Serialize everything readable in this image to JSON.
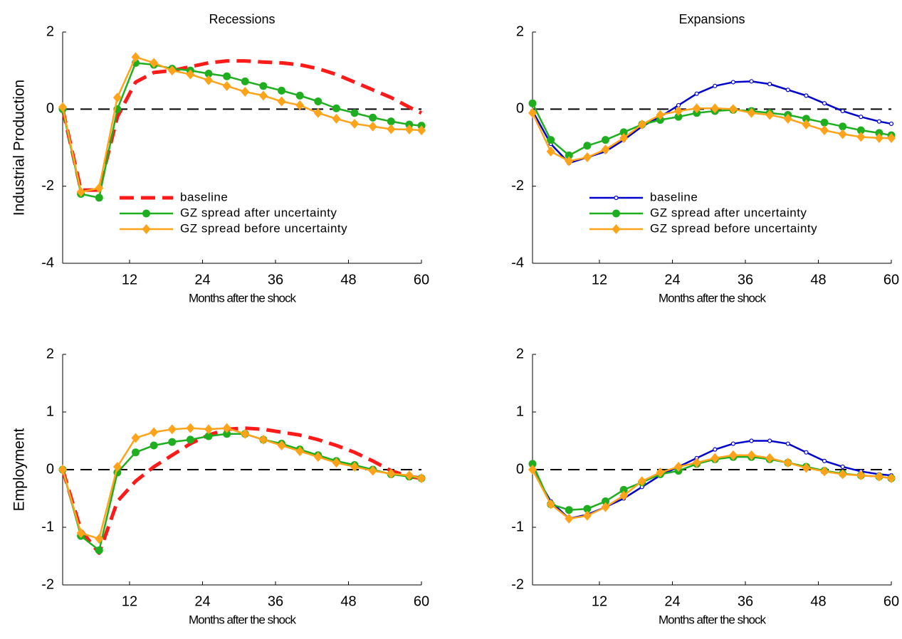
{
  "chart_data": [
    {
      "type": "line",
      "title": "Recessions",
      "ylabel": "Industrial Production",
      "xlabel": "Months after the shock",
      "x": [
        1,
        4,
        7,
        10,
        13,
        16,
        19,
        22,
        25,
        28,
        31,
        34,
        37,
        40,
        43,
        46,
        49,
        52,
        55,
        58,
        60
      ],
      "xlim": [
        1,
        60
      ],
      "xticks": [
        12,
        24,
        36,
        48,
        60
      ],
      "ylim": [
        -4,
        2
      ],
      "yticks": [
        -4,
        -2,
        0,
        2
      ],
      "reference_line": 0,
      "legend": true,
      "legend_loc": "lower left",
      "series": [
        {
          "name": "baseline",
          "color": "#ff1a1a",
          "linestyle": "dashed",
          "marker": "none",
          "values": [
            0,
            -2.1,
            -2.1,
            -0.2,
            0.7,
            0.95,
            1.0,
            1.1,
            1.2,
            1.25,
            1.25,
            1.22,
            1.2,
            1.15,
            1.05,
            0.9,
            0.7,
            0.5,
            0.3,
            0.05,
            -0.1
          ]
        },
        {
          "name": "GZ spread after uncertainty",
          "color": "#1fae1f",
          "linestyle": "solid",
          "marker": "circle",
          "values": [
            0,
            -2.2,
            -2.3,
            0.0,
            1.2,
            1.15,
            1.05,
            1.0,
            0.92,
            0.85,
            0.72,
            0.6,
            0.48,
            0.35,
            0.2,
            0.02,
            -0.1,
            -0.22,
            -0.32,
            -0.4,
            -0.43
          ]
        },
        {
          "name": "GZ spread before uncertainty",
          "color": "#ffa31a",
          "linestyle": "solid",
          "marker": "diamond",
          "values": [
            0.05,
            -2.15,
            -2.05,
            0.3,
            1.35,
            1.2,
            1.0,
            0.9,
            0.75,
            0.6,
            0.45,
            0.35,
            0.2,
            0.1,
            -0.1,
            -0.25,
            -0.38,
            -0.45,
            -0.52,
            -0.53,
            -0.55
          ]
        }
      ]
    },
    {
      "type": "line",
      "title": "Expansions",
      "xlabel": "Months after the shock",
      "x": [
        1,
        4,
        7,
        10,
        13,
        16,
        19,
        22,
        25,
        28,
        31,
        34,
        37,
        40,
        43,
        46,
        49,
        52,
        55,
        58,
        60
      ],
      "xlim": [
        1,
        60
      ],
      "xticks": [
        12,
        24,
        36,
        48,
        60
      ],
      "ylim": [
        -4,
        2
      ],
      "yticks": [
        -4,
        -2,
        0,
        2
      ],
      "reference_line": 0,
      "legend": true,
      "legend_loc": "lower left",
      "series": [
        {
          "name": "baseline",
          "color": "#0000cc",
          "linestyle": "solid",
          "marker": "open-circle",
          "values": [
            -0.05,
            -0.9,
            -1.4,
            -1.25,
            -1.1,
            -0.8,
            -0.45,
            -0.2,
            0.1,
            0.4,
            0.6,
            0.7,
            0.72,
            0.65,
            0.5,
            0.35,
            0.15,
            -0.05,
            -0.2,
            -0.32,
            -0.38
          ]
        },
        {
          "name": "GZ spread after uncertainty",
          "color": "#1fae1f",
          "linestyle": "solid",
          "marker": "circle",
          "values": [
            0.15,
            -0.8,
            -1.2,
            -0.95,
            -0.8,
            -0.6,
            -0.4,
            -0.28,
            -0.2,
            -0.1,
            -0.05,
            -0.02,
            -0.05,
            -0.1,
            -0.15,
            -0.25,
            -0.35,
            -0.45,
            -0.55,
            -0.62,
            -0.68
          ]
        },
        {
          "name": "GZ spread before uncertainty",
          "color": "#ffa31a",
          "linestyle": "solid",
          "marker": "diamond",
          "values": [
            -0.1,
            -1.1,
            -1.35,
            -1.25,
            -1.05,
            -0.75,
            -0.4,
            -0.15,
            -0.05,
            0.02,
            0.02,
            0.0,
            -0.1,
            -0.15,
            -0.25,
            -0.4,
            -0.55,
            -0.65,
            -0.72,
            -0.75,
            -0.75
          ]
        }
      ]
    },
    {
      "type": "line",
      "ylabel": "Employment",
      "xlabel": "Months after the shock",
      "x": [
        1,
        4,
        7,
        10,
        13,
        16,
        19,
        22,
        25,
        28,
        31,
        34,
        37,
        40,
        43,
        46,
        49,
        52,
        55,
        58,
        60
      ],
      "xlim": [
        1,
        60
      ],
      "xticks": [
        12,
        24,
        36,
        48,
        60
      ],
      "ylim": [
        -2,
        2
      ],
      "yticks": [
        -2,
        -1,
        0,
        1,
        2
      ],
      "reference_line": 0,
      "legend": false,
      "series": [
        {
          "color": "#ff1a1a",
          "linestyle": "dashed",
          "marker": "none",
          "values": [
            0,
            -1.05,
            -1.45,
            -0.55,
            -0.2,
            0.05,
            0.25,
            0.45,
            0.6,
            0.7,
            0.72,
            0.7,
            0.65,
            0.6,
            0.52,
            0.42,
            0.3,
            0.15,
            -0.02,
            -0.12,
            -0.15
          ]
        },
        {
          "color": "#1fae1f",
          "linestyle": "solid",
          "marker": "circle",
          "values": [
            0,
            -1.15,
            -1.4,
            -0.05,
            0.3,
            0.42,
            0.48,
            0.52,
            0.58,
            0.62,
            0.62,
            0.52,
            0.45,
            0.35,
            0.25,
            0.15,
            0.08,
            0.0,
            -0.08,
            -0.12,
            -0.15
          ]
        },
        {
          "color": "#ffa31a",
          "linestyle": "solid",
          "marker": "diamond",
          "values": [
            0,
            -1.1,
            -1.2,
            0.05,
            0.55,
            0.65,
            0.7,
            0.72,
            0.7,
            0.72,
            0.62,
            0.52,
            0.42,
            0.32,
            0.22,
            0.12,
            0.05,
            -0.02,
            -0.07,
            -0.1,
            -0.15
          ]
        }
      ]
    },
    {
      "type": "line",
      "xlabel": "Months after the shock",
      "x": [
        1,
        4,
        7,
        10,
        13,
        16,
        19,
        22,
        25,
        28,
        31,
        34,
        37,
        40,
        43,
        46,
        49,
        52,
        55,
        58,
        60
      ],
      "xlim": [
        1,
        60
      ],
      "xticks": [
        12,
        24,
        36,
        48,
        60
      ],
      "ylim": [
        -2,
        2
      ],
      "yticks": [
        -2,
        -1,
        0,
        1,
        2
      ],
      "reference_line": 0,
      "legend": false,
      "series": [
        {
          "color": "#0000cc",
          "linestyle": "solid",
          "marker": "open-circle",
          "values": [
            0,
            -0.55,
            -0.85,
            -0.78,
            -0.65,
            -0.5,
            -0.3,
            -0.1,
            0.05,
            0.2,
            0.35,
            0.45,
            0.5,
            0.5,
            0.45,
            0.3,
            0.15,
            0.05,
            -0.03,
            -0.08,
            -0.1
          ]
        },
        {
          "color": "#1fae1f",
          "linestyle": "solid",
          "marker": "circle",
          "values": [
            0.1,
            -0.6,
            -0.7,
            -0.68,
            -0.55,
            -0.35,
            -0.22,
            -0.08,
            -0.02,
            0.1,
            0.18,
            0.22,
            0.22,
            0.18,
            0.12,
            0.05,
            -0.02,
            -0.07,
            -0.1,
            -0.12,
            -0.15
          ]
        },
        {
          "color": "#ffa31a",
          "linestyle": "solid",
          "marker": "diamond",
          "values": [
            0,
            -0.6,
            -0.85,
            -0.8,
            -0.65,
            -0.45,
            -0.2,
            -0.05,
            0.05,
            0.12,
            0.2,
            0.25,
            0.25,
            0.2,
            0.12,
            0.03,
            -0.03,
            -0.08,
            -0.1,
            -0.12,
            -0.15
          ]
        }
      ]
    }
  ]
}
